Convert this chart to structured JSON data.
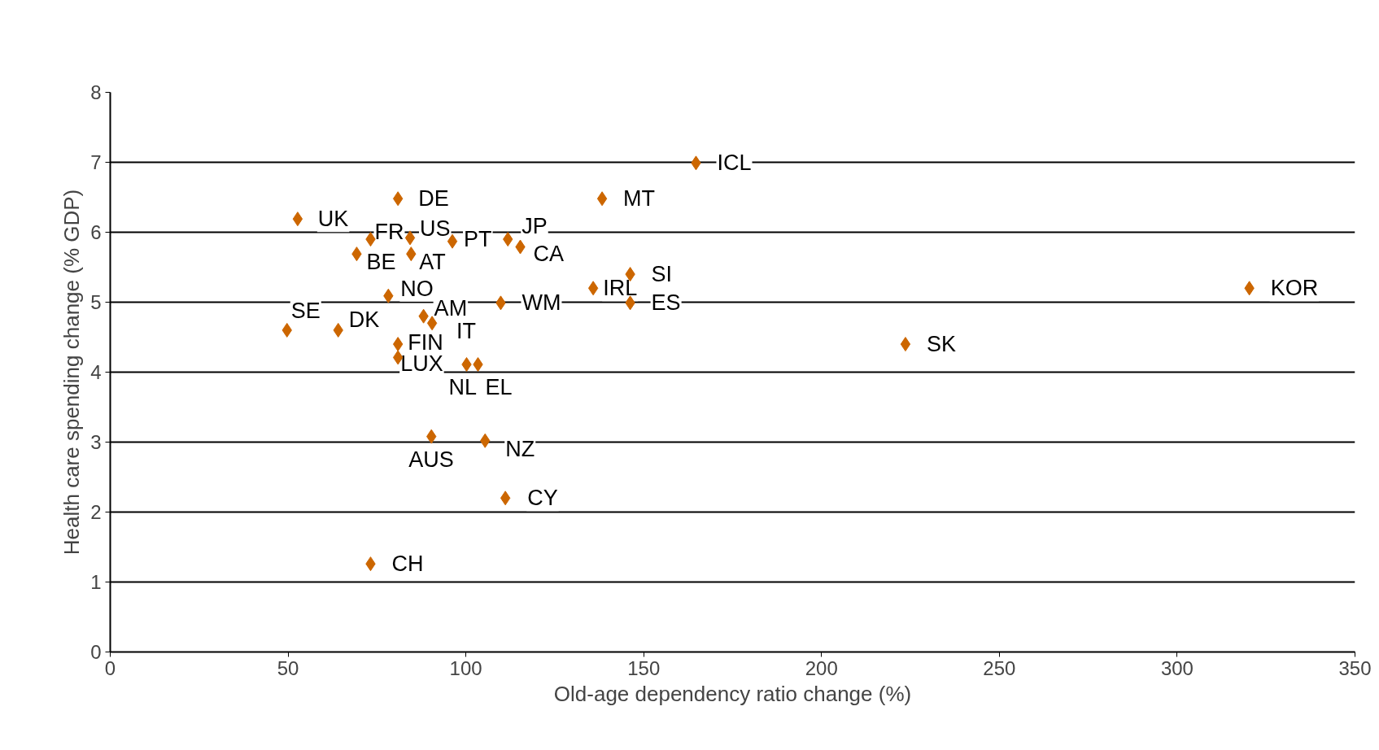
{
  "chart_data": {
    "type": "scatter",
    "xlabel": "Old-age dependency ratio change (%)",
    "ylabel": "Health care spending change (% GDP)",
    "xlim": [
      0,
      350
    ],
    "xticks": [
      0,
      50,
      100,
      150,
      200,
      250,
      300,
      350
    ],
    "ylim": [
      0,
      8
    ],
    "yticks": [
      0,
      1,
      2,
      3,
      4,
      5,
      6,
      7,
      8
    ],
    "grid": "y",
    "marker": "diamond",
    "data_labels": false,
    "series": [
      {
        "color": "#cc6600",
        "x": [
          52.7,
          80.9,
          73.2,
          84.3,
          96.2,
          111.8,
          115.3,
          69.3,
          84.6,
          78.2,
          49.7,
          64.1,
          88.1,
          90.5,
          80.9,
          80.9,
          100.2,
          103.4,
          109.8,
          90.3,
          105.4,
          111.1,
          73.2,
          164.7,
          138.3,
          135.8,
          146.2,
          146.2,
          223.6,
          320.3
        ],
        "values": [
          6.19,
          6.48,
          5.9,
          5.92,
          5.87,
          5.9,
          5.79,
          5.69,
          5.69,
          5.09,
          4.6,
          4.6,
          4.8,
          4.7,
          4.4,
          4.21,
          4.11,
          4.11,
          4.99,
          3.08,
          3.02,
          2.2,
          1.26,
          6.99,
          6.48,
          5.2,
          5.4,
          4.99,
          4.4,
          5.2
        ],
        "value_labels": [
          "UK",
          "DE",
          "FR",
          "US",
          "PT",
          "JP",
          "CA",
          "BE",
          "AT",
          "NO",
          "SE",
          "DK",
          "AM",
          "IT",
          "FIN",
          "LUX",
          "NL",
          "EL",
          "WM",
          "AUS",
          "NZ",
          "CY",
          "CH",
          "ICL",
          "MT",
          "IRL",
          "SI",
          "ES",
          "SK",
          "KOR"
        ]
      }
    ]
  }
}
